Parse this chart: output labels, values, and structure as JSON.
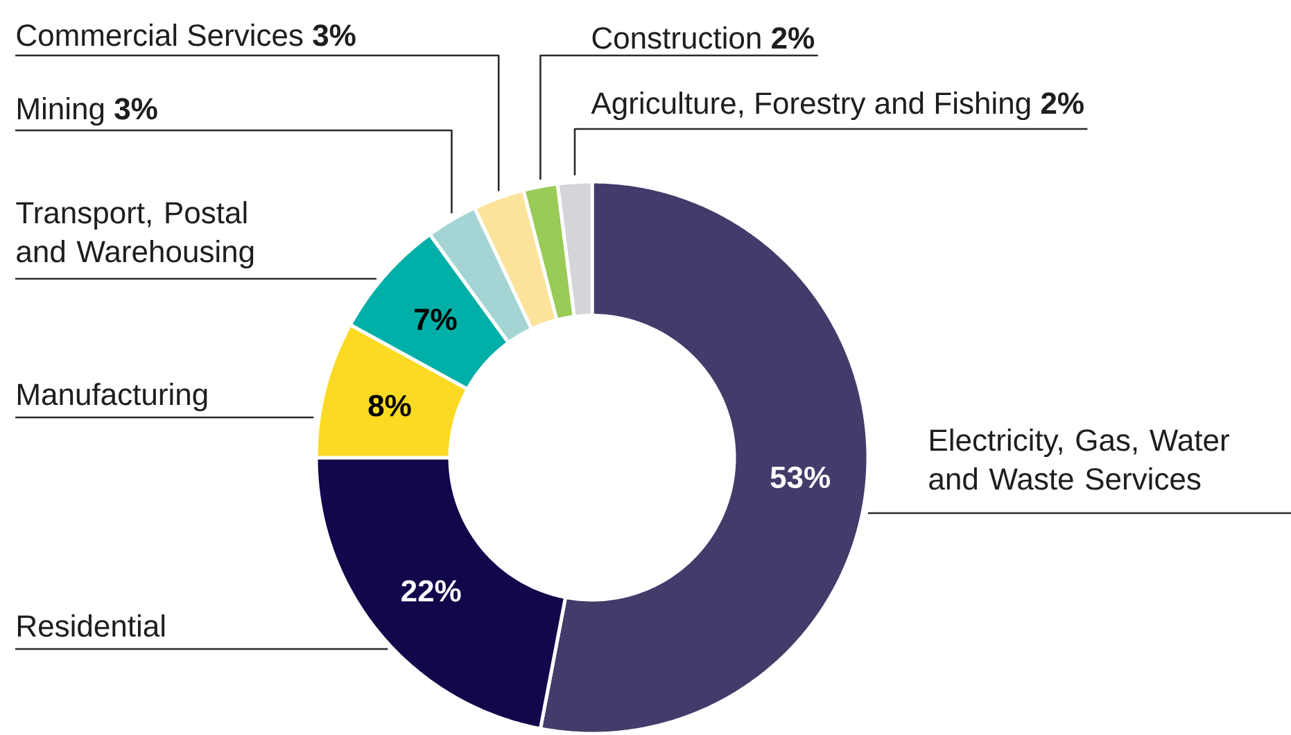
{
  "chart_data": {
    "type": "donut",
    "categories": [
      "Electricity, Gas, Water and Waste Services",
      "Residential",
      "Manufacturing",
      "Transport, Postal and Warehousing",
      "Mining",
      "Commercial Services",
      "Construction",
      "Agriculture, Forestry and Fishing"
    ],
    "values": [
      53,
      22,
      8,
      7,
      3,
      3,
      2,
      2
    ],
    "colors": [
      "#443b6b",
      "#12074a",
      "#fcd922",
      "#00afa7",
      "#a4d5d4",
      "#fbe39b",
      "#9acb57",
      "#d4d5d9"
    ],
    "value_labels": [
      "53%",
      "22%",
      "8%",
      "7%",
      "3%",
      "3%",
      "2%",
      "2%"
    ]
  }
}
